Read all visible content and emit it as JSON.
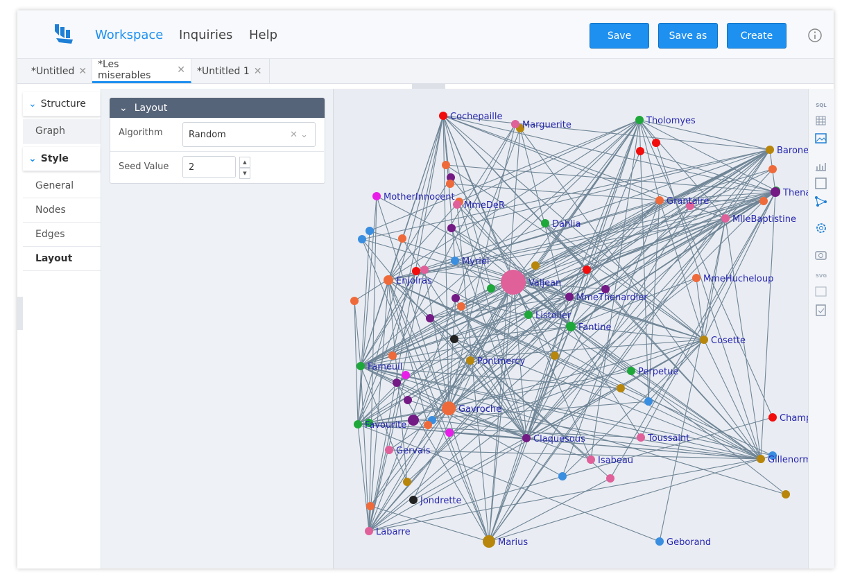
{
  "header": {
    "nav": [
      "Workspace",
      "Inquiries",
      "Help"
    ],
    "buttons": [
      "Save",
      "Save as",
      "Create"
    ]
  },
  "tabs": [
    "*Untitled",
    "*Les miserables",
    "*Untitled 1"
  ],
  "sidebar": {
    "sections": [
      {
        "title": "Structure",
        "items": [
          "Graph"
        ]
      },
      {
        "title": "Style",
        "items": [
          "General",
          "Nodes",
          "Edges",
          "Layout"
        ]
      }
    ]
  },
  "layout_panel": {
    "title": "Layout",
    "fields": [
      {
        "label": "Algorithm",
        "value": "Random"
      },
      {
        "label": "Seed Value",
        "value": "2"
      }
    ]
  },
  "toolbar": [
    "SQL",
    "SVG"
  ],
  "graph": {
    "nodes": [
      "Cochepaille",
      "Marguerite",
      "Tholomyes",
      "Barone",
      "Thena",
      "MotherInnocent",
      "MmeDeR",
      "Grantaire",
      "MlleBaptistine",
      "Dahlia",
      "Myriel",
      "Enjolras",
      "Valjean",
      "MmeHucheloup",
      "MmeThenardier",
      "Listolier",
      "Fantine",
      "Cosette",
      "Pontmercy",
      "Fameuil",
      "Perpetue",
      "Gavroche",
      "Favourite",
      "Champ",
      "Claquesous",
      "Toussaint",
      "Gervais",
      "Isabeau",
      "Gillenorm",
      "Jondrette",
      "Labarre",
      "Marius",
      "Geborand"
    ]
  }
}
